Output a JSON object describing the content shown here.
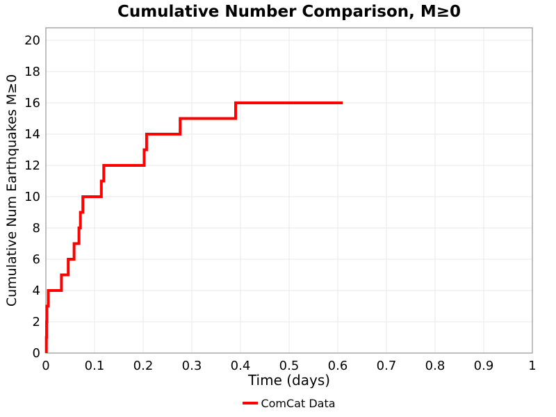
{
  "chart_data": {
    "type": "line",
    "subtype": "step-post",
    "title": "Cumulative Number Comparison, M≥0",
    "xlabel": "Time (days)",
    "ylabel": "Cumulative Num Earthquakes M≥0",
    "legend_position": "below-axes-center",
    "legend": [
      {
        "label": "ComCat Data",
        "color": "#ff0000"
      }
    ],
    "xlim": [
      0,
      1
    ],
    "ylim": [
      0,
      20.8
    ],
    "xticks": [
      0,
      0.1,
      0.2,
      0.3,
      0.4,
      0.5,
      0.6,
      0.7,
      0.8,
      0.9,
      1
    ],
    "xtick_labels": [
      "0",
      "0.1",
      "0.2",
      "0.3",
      "0.4",
      "0.5",
      "0.6",
      "0.7",
      "0.8",
      "0.9",
      "1"
    ],
    "yticks": [
      0,
      2,
      4,
      6,
      8,
      10,
      12,
      14,
      16,
      18,
      20
    ],
    "grid": true,
    "series": [
      {
        "name": "ComCat Data",
        "color": "#ff0000",
        "line_width": 4,
        "start": [
          0.001,
          0
        ],
        "events": [
          [
            0.001,
            1
          ],
          [
            0.0015,
            2
          ],
          [
            0.002,
            3
          ],
          [
            0.005,
            4
          ],
          [
            0.032,
            5
          ],
          [
            0.046,
            6
          ],
          [
            0.058,
            7
          ],
          [
            0.068,
            8
          ],
          [
            0.071,
            9
          ],
          [
            0.076,
            10
          ],
          [
            0.114,
            11
          ],
          [
            0.119,
            12
          ],
          [
            0.202,
            13
          ],
          [
            0.207,
            14
          ],
          [
            0.276,
            15
          ],
          [
            0.39,
            16
          ]
        ],
        "end_time": 0.61,
        "final_count": 16
      }
    ],
    "colors": {
      "background": "#ffffff",
      "axis_border": "#a3a3a3",
      "grid": "#ececec",
      "text": "#000000",
      "line": "#ff0000"
    }
  }
}
